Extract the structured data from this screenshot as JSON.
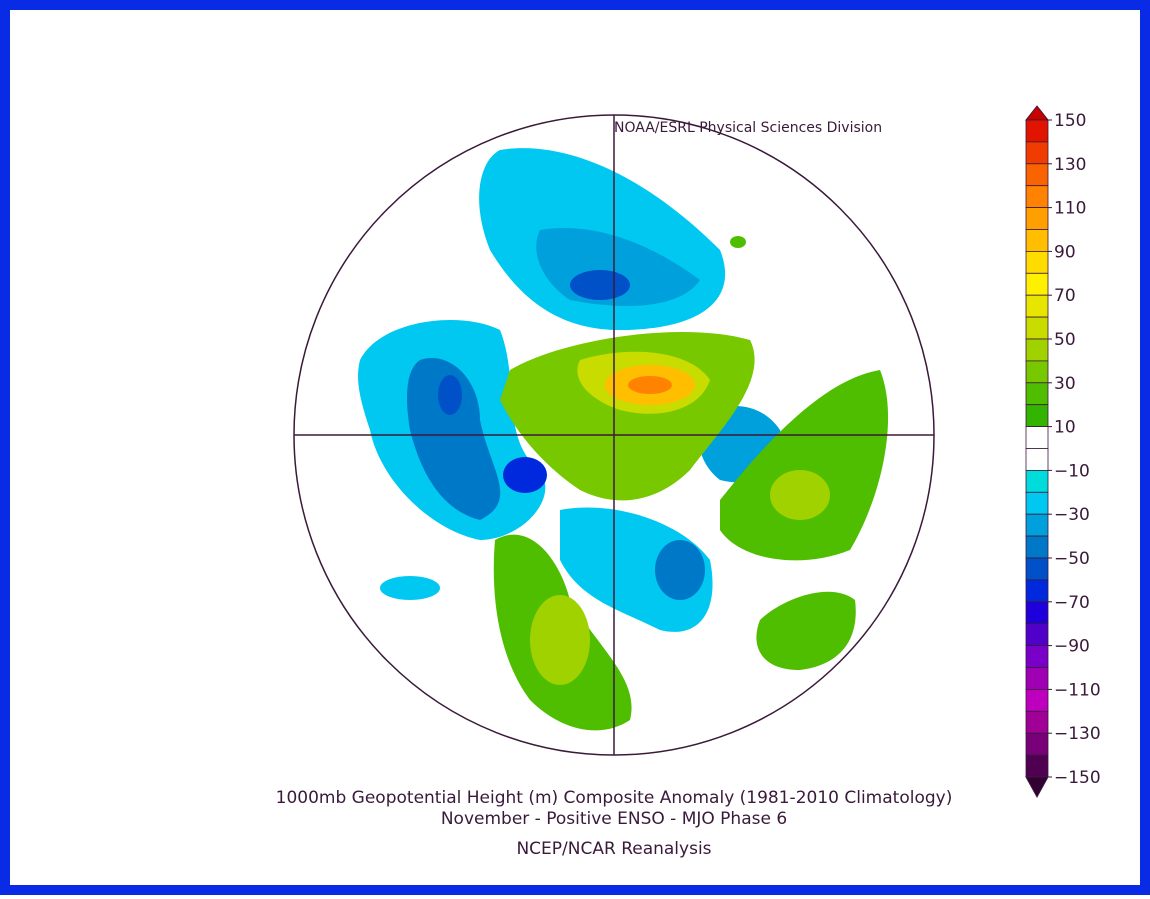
{
  "credit": "NOAA/ESRL Physical Sciences Division",
  "title": "1000mb Geopotential Height (m) Composite Anomaly (1981-2010 Climatology)",
  "subtitle": "November - Positive ENSO - MJO Phase 6",
  "source": "NCEP/NCAR Reanalysis",
  "colorbar": {
    "ticks": [
      150,
      130,
      110,
      90,
      70,
      50,
      30,
      10,
      -10,
      -30,
      -50,
      -70,
      -90,
      -110,
      -130,
      -150
    ],
    "colors": [
      "#c80000",
      "#e11400",
      "#f03c00",
      "#fa6400",
      "#ff8200",
      "#ffa000",
      "#ffbe00",
      "#ffdc00",
      "#fff000",
      "#e6e600",
      "#c8dc00",
      "#a0d200",
      "#78c800",
      "#50be00",
      "#32b400",
      "#ffffff",
      "#ffffff",
      "#00dcdc",
      "#00c8f0",
      "#00a0dc",
      "#0078c8",
      "#0050c8",
      "#0028dc",
      "#1e00dc",
      "#5000c8",
      "#7800c8",
      "#a000b4",
      "#be00be",
      "#a00096",
      "#780078",
      "#500050",
      "#320032"
    ]
  }
}
